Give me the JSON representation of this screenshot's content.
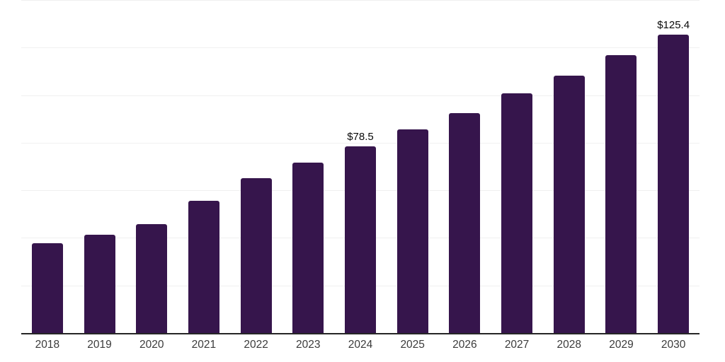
{
  "chart_data": {
    "type": "bar",
    "title": "",
    "xlabel": "",
    "ylabel": "",
    "categories": [
      "2018",
      "2019",
      "2020",
      "2021",
      "2022",
      "2023",
      "2024",
      "2025",
      "2026",
      "2027",
      "2028",
      "2029",
      "2030"
    ],
    "values": [
      37.9,
      41.3,
      45.9,
      55.7,
      65.0,
      71.5,
      78.5,
      85.5,
      92.4,
      100.7,
      108.2,
      116.8,
      125.4
    ],
    "data_labels": [
      "",
      "",
      "",
      "",
      "",
      "",
      "$78.5",
      "",
      "",
      "",
      "",
      "",
      "$125.4"
    ],
    "ylim": [
      0,
      140
    ],
    "grid_step": 20,
    "grid": true,
    "legend": "none",
    "bar_color": "#36154C",
    "grid_color": "#f0f0f0",
    "axis_color": "#262626",
    "data_label_color": "#0a0a0a",
    "tick_label_color": "#3b3b3b"
  }
}
